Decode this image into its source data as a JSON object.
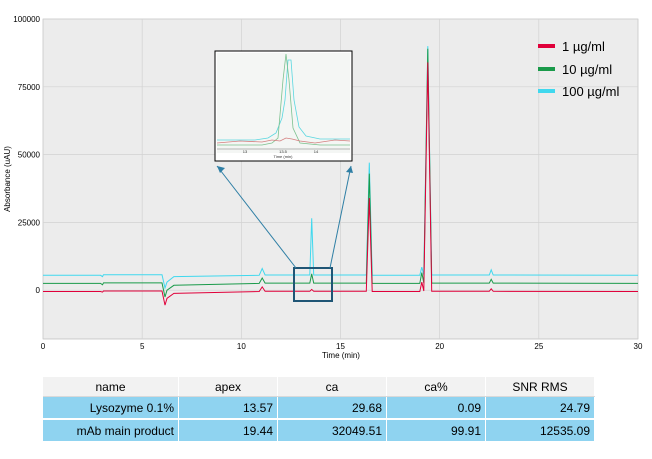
{
  "chart_data": {
    "type": "line",
    "xlabel": "Time (min)",
    "ylabel": "Absorbance (uAU)",
    "xlim": [
      0,
      30
    ],
    "ylim": [
      -18000,
      100000
    ],
    "x_ticks": [
      "0",
      "5",
      "10",
      "15",
      "20",
      "25",
      "30"
    ],
    "y_ticks": [
      "0",
      "25000",
      "50000",
      "75000",
      "100000"
    ],
    "grid": true,
    "legend_position": "top-right",
    "series": [
      {
        "name": "1 µg/ml",
        "color": "#e0003a",
        "x": [
          0,
          2.9,
          3.0,
          3.05,
          6.0,
          6.15,
          6.25,
          6.6,
          10.9,
          11.05,
          11.2,
          13.45,
          13.55,
          13.65,
          16.3,
          16.45,
          16.6,
          19.0,
          19.1,
          19.2,
          19.4,
          19.6,
          22.5,
          22.6,
          22.7,
          30
        ],
        "y": [
          -500,
          -500,
          -700,
          -300,
          -300,
          -5500,
          -3000,
          -1200,
          -500,
          1200,
          -400,
          -400,
          300,
          -400,
          -400,
          34000,
          -500,
          -500,
          3000,
          -300,
          84000,
          -400,
          -400,
          500,
          -400,
          -500
        ]
      },
      {
        "name": "10 µg/ml",
        "color": "#1a9a4a",
        "x": [
          0,
          2.9,
          3.0,
          3.05,
          6.0,
          6.15,
          6.25,
          6.6,
          10.9,
          11.05,
          11.2,
          13.45,
          13.55,
          13.65,
          16.3,
          16.45,
          16.6,
          19.0,
          19.1,
          19.2,
          19.4,
          19.6,
          22.5,
          22.6,
          22.7,
          30
        ],
        "y": [
          2500,
          2500,
          2000,
          2700,
          2700,
          -2500,
          0,
          1800,
          2500,
          4500,
          2600,
          2600,
          6000,
          2600,
          2600,
          43000,
          2500,
          2500,
          6500,
          2700,
          89000,
          2600,
          2600,
          4000,
          2600,
          2500
        ]
      },
      {
        "name": "100 µg/ml",
        "color": "#40d8ee",
        "x": [
          0,
          2.9,
          3.0,
          3.05,
          6.0,
          6.15,
          6.25,
          6.6,
          10.9,
          11.05,
          11.2,
          13.45,
          13.55,
          13.65,
          16.3,
          16.45,
          16.6,
          19.0,
          19.1,
          19.2,
          19.4,
          19.6,
          22.5,
          22.6,
          22.7,
          30
        ],
        "y": [
          5500,
          5500,
          5000,
          5700,
          5700,
          800,
          3000,
          5000,
          5500,
          8000,
          5600,
          5600,
          26500,
          5600,
          5600,
          47000,
          5500,
          5500,
          8500,
          5700,
          90000,
          5600,
          5600,
          7500,
          5600,
          5500
        ]
      }
    ],
    "table": {
      "columns": [
        "name",
        "apex",
        "ca",
        "ca%",
        "SNR RMS"
      ],
      "rows": [
        [
          "Lysozyme 0.1%",
          "13.57",
          "29.68",
          "0.09",
          "24.79"
        ],
        [
          "mAb main product",
          "19.44",
          "32049.51",
          "99.91",
          "12535.09"
        ]
      ]
    }
  },
  "colors": {
    "plot_background": "#ececec",
    "highlight_box": "#1f5575",
    "table_row": "#8fd3f0"
  }
}
